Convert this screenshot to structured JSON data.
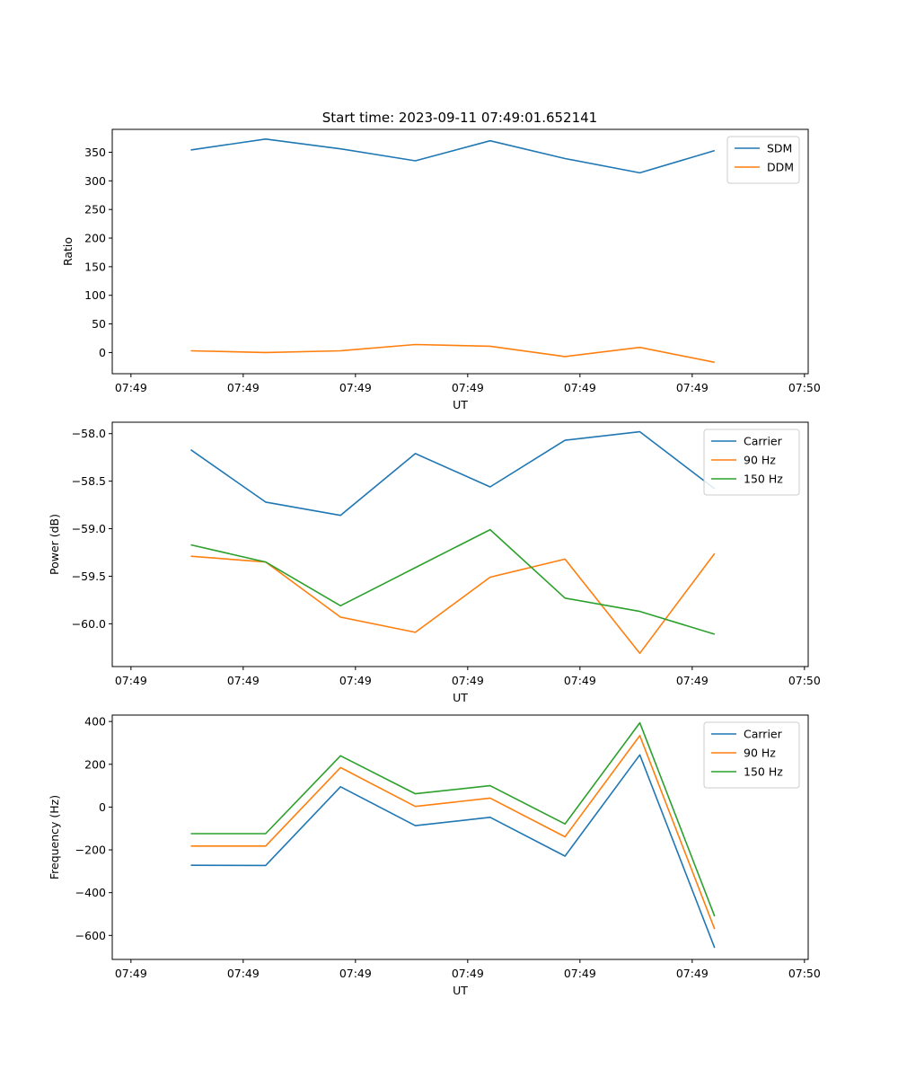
{
  "figure": {
    "title": "Start time: 2023-09-11 07:49:01.652141"
  },
  "chart_data": [
    {
      "type": "line",
      "title": "Start time: 2023-09-11 07:49:01.652141",
      "xlabel": "UT",
      "ylabel": "Ratio",
      "x": [
        1,
        2,
        3,
        4,
        5,
        6,
        7,
        8
      ],
      "xlim": [
        -0.05,
        9.25
      ],
      "xticks": [
        0.2,
        1.7,
        3.2,
        4.7,
        6.2,
        7.7,
        9.2
      ],
      "xtick_labels": [
        "07:49",
        "07:49",
        "07:49",
        "07:49",
        "07:49",
        "07:49",
        "07:50"
      ],
      "ylim": [
        -37,
        390
      ],
      "yticks": [
        0,
        50,
        100,
        150,
        200,
        250,
        300,
        350
      ],
      "ytick_labels": [
        "0",
        "50",
        "100",
        "150",
        "200",
        "250",
        "300",
        "350"
      ],
      "legend": "top-right",
      "series": [
        {
          "name": "SDM",
          "color": "#1f77b4",
          "values": [
            354,
            373,
            356,
            335,
            370,
            339,
            314,
            353
          ]
        },
        {
          "name": "DDM",
          "color": "#ff7f0e",
          "values": [
            3,
            0,
            3,
            14,
            11,
            -7,
            9,
            -17
          ]
        }
      ]
    },
    {
      "type": "line",
      "xlabel": "UT",
      "ylabel": "Power (dB)",
      "x": [
        1,
        2,
        3,
        4,
        5,
        6,
        7,
        8
      ],
      "xlim": [
        -0.05,
        9.25
      ],
      "xticks": [
        0.2,
        1.7,
        3.2,
        4.7,
        6.2,
        7.7,
        9.2
      ],
      "xtick_labels": [
        "07:49",
        "07:49",
        "07:49",
        "07:49",
        "07:49",
        "07:49",
        "07:50"
      ],
      "ylim": [
        -60.45,
        -57.88
      ],
      "yticks": [
        -60.0,
        -59.5,
        -59.0,
        -58.5,
        -58.0
      ],
      "ytick_labels": [
        "−60.0",
        "−59.5",
        "−59.0",
        "−58.5",
        "−58.0"
      ],
      "legend": "top-right",
      "series": [
        {
          "name": "Carrier",
          "color": "#1f77b4",
          "values": [
            -58.17,
            -58.72,
            -58.86,
            -58.21,
            -58.56,
            -58.07,
            -57.98,
            -58.58
          ]
        },
        {
          "name": "90 Hz",
          "color": "#ff7f0e",
          "values": [
            -59.29,
            -59.35,
            -59.93,
            -60.09,
            -59.51,
            -59.32,
            -60.31,
            -59.26
          ]
        },
        {
          "name": "150 Hz",
          "color": "#2ca02c",
          "values": [
            -59.17,
            -59.35,
            -59.81,
            -59.41,
            -59.01,
            -59.73,
            -59.87,
            -60.11
          ]
        }
      ]
    },
    {
      "type": "line",
      "xlabel": "UT",
      "ylabel": "Frequency (Hz)",
      "x": [
        1,
        2,
        3,
        4,
        5,
        6,
        7,
        8
      ],
      "xlim": [
        -0.05,
        9.25
      ],
      "xticks": [
        0.2,
        1.7,
        3.2,
        4.7,
        6.2,
        7.7,
        9.2
      ],
      "xtick_labels": [
        "07:49",
        "07:49",
        "07:49",
        "07:49",
        "07:49",
        "07:49",
        "07:50"
      ],
      "ylim": [
        -712,
        430
      ],
      "yticks": [
        -600,
        -400,
        -200,
        0,
        200,
        400
      ],
      "ytick_labels": [
        "−600",
        "−400",
        "−200",
        "0",
        "200",
        "400"
      ],
      "legend": "top-right",
      "series": [
        {
          "name": "Carrier",
          "color": "#1f77b4",
          "values": [
            -272,
            -273,
            95,
            -87,
            -48,
            -229,
            244,
            -658
          ]
        },
        {
          "name": "90 Hz",
          "color": "#ff7f0e",
          "values": [
            -182,
            -182,
            185,
            3,
            42,
            -139,
            334,
            -570
          ]
        },
        {
          "name": "150 Hz",
          "color": "#2ca02c",
          "values": [
            -124,
            -124,
            240,
            62,
            100,
            -79,
            394,
            -510
          ]
        }
      ]
    }
  ]
}
